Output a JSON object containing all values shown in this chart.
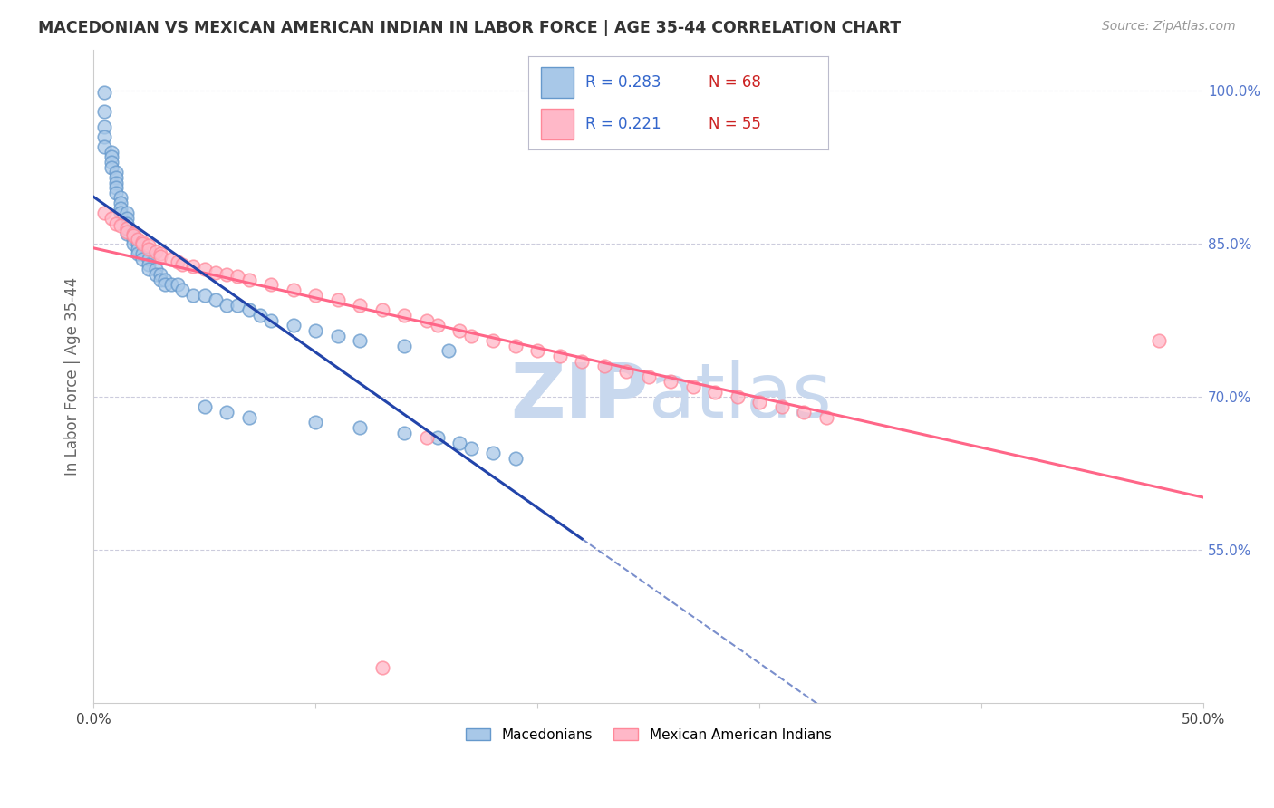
{
  "title": "MACEDONIAN VS MEXICAN AMERICAN INDIAN IN LABOR FORCE | AGE 35-44 CORRELATION CHART",
  "source": "Source: ZipAtlas.com",
  "ylabel": "In Labor Force | Age 35-44",
  "xlim": [
    0.0,
    0.5
  ],
  "ylim": [
    0.4,
    1.04
  ],
  "xticks": [
    0.0,
    0.1,
    0.2,
    0.3,
    0.4,
    0.5
  ],
  "yticks": [
    0.55,
    0.7,
    0.85,
    1.0
  ],
  "ytick_labels": [
    "55.0%",
    "70.0%",
    "85.0%",
    "100.0%"
  ],
  "xtick_labels_bottom": [
    "0.0%",
    "",
    "",
    "",
    "",
    "50.0%"
  ],
  "blue_R": 0.283,
  "blue_N": 68,
  "pink_R": 0.221,
  "pink_N": 55,
  "blue_color": "#A8C8E8",
  "pink_color": "#FFB8C8",
  "blue_edge": "#6699CC",
  "pink_edge": "#FF8899",
  "trend_blue_color": "#2244AA",
  "trend_pink_color": "#FF6688",
  "trend_blue_dash": "solid",
  "trend_pink_dash": "solid",
  "watermark_zip": "ZIP",
  "watermark_atlas": "atlas",
  "watermark_color": "#C8D8EE",
  "legend_blue_label": "Macedonians",
  "legend_pink_label": "Mexican American Indians",
  "blue_x": [
    0.005,
    0.005,
    0.005,
    0.005,
    0.005,
    0.008,
    0.008,
    0.008,
    0.008,
    0.01,
    0.01,
    0.01,
    0.01,
    0.01,
    0.012,
    0.012,
    0.012,
    0.012,
    0.015,
    0.015,
    0.015,
    0.015,
    0.015,
    0.018,
    0.018,
    0.018,
    0.02,
    0.02,
    0.02,
    0.022,
    0.022,
    0.025,
    0.025,
    0.025,
    0.028,
    0.028,
    0.03,
    0.03,
    0.032,
    0.032,
    0.035,
    0.038,
    0.04,
    0.045,
    0.05,
    0.055,
    0.06,
    0.065,
    0.07,
    0.075,
    0.08,
    0.09,
    0.1,
    0.11,
    0.12,
    0.14,
    0.16,
    0.05,
    0.06,
    0.07,
    0.1,
    0.12,
    0.14,
    0.155,
    0.165,
    0.17,
    0.18,
    0.19
  ],
  "blue_y": [
    0.998,
    0.98,
    0.965,
    0.955,
    0.945,
    0.94,
    0.935,
    0.93,
    0.925,
    0.92,
    0.915,
    0.91,
    0.905,
    0.9,
    0.895,
    0.89,
    0.885,
    0.88,
    0.88,
    0.875,
    0.87,
    0.865,
    0.86,
    0.86,
    0.855,
    0.85,
    0.85,
    0.845,
    0.84,
    0.84,
    0.835,
    0.835,
    0.83,
    0.825,
    0.825,
    0.82,
    0.82,
    0.815,
    0.815,
    0.81,
    0.81,
    0.81,
    0.805,
    0.8,
    0.8,
    0.795,
    0.79,
    0.79,
    0.785,
    0.78,
    0.775,
    0.77,
    0.765,
    0.76,
    0.755,
    0.75,
    0.745,
    0.69,
    0.685,
    0.68,
    0.675,
    0.67,
    0.665,
    0.66,
    0.655,
    0.65,
    0.645,
    0.64
  ],
  "pink_x": [
    0.005,
    0.008,
    0.01,
    0.012,
    0.015,
    0.015,
    0.018,
    0.018,
    0.02,
    0.022,
    0.022,
    0.025,
    0.025,
    0.028,
    0.03,
    0.03,
    0.035,
    0.038,
    0.04,
    0.045,
    0.05,
    0.055,
    0.06,
    0.065,
    0.07,
    0.08,
    0.09,
    0.1,
    0.11,
    0.12,
    0.13,
    0.14,
    0.15,
    0.155,
    0.165,
    0.17,
    0.18,
    0.19,
    0.2,
    0.21,
    0.22,
    0.23,
    0.24,
    0.25,
    0.26,
    0.27,
    0.28,
    0.29,
    0.3,
    0.31,
    0.32,
    0.33,
    0.48,
    0.13,
    0.15
  ],
  "pink_y": [
    0.88,
    0.875,
    0.87,
    0.868,
    0.865,
    0.862,
    0.86,
    0.858,
    0.855,
    0.852,
    0.85,
    0.848,
    0.845,
    0.842,
    0.84,
    0.838,
    0.835,
    0.832,
    0.83,
    0.828,
    0.825,
    0.822,
    0.82,
    0.818,
    0.815,
    0.81,
    0.805,
    0.8,
    0.795,
    0.79,
    0.785,
    0.78,
    0.775,
    0.77,
    0.765,
    0.76,
    0.755,
    0.75,
    0.745,
    0.74,
    0.735,
    0.73,
    0.725,
    0.72,
    0.715,
    0.71,
    0.705,
    0.7,
    0.695,
    0.69,
    0.685,
    0.68,
    0.755,
    0.435,
    0.66
  ]
}
